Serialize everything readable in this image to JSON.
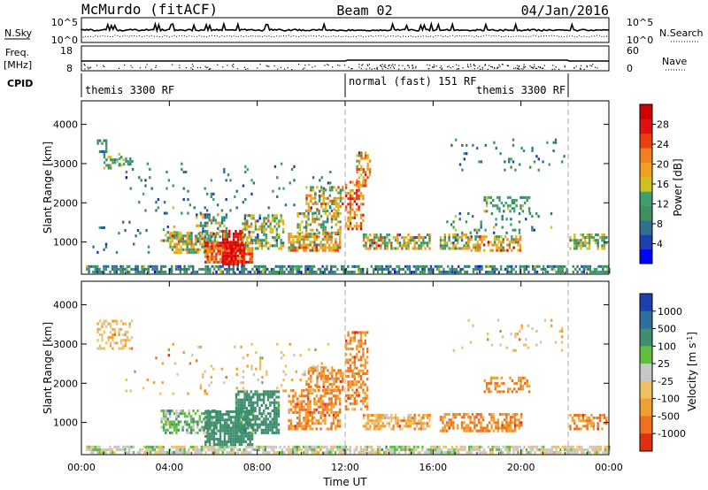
{
  "header": {
    "station": "McMurdo (fitACF)",
    "beam": "Beam 02",
    "date": "04/Jan/2016"
  },
  "labels": {
    "nsky": "N.Sky",
    "nsearch": "N.Search",
    "freq_top": "Freq.",
    "freq_unit": "[MHz]",
    "nave": "Nave",
    "cpid": "CPID",
    "nsky_hi": "10^5",
    "nsky_lo": "10^0",
    "freq_hi": "18",
    "freq_lo": "8",
    "nave_hi": "60",
    "nave_lo": "0"
  },
  "cpid": [
    {
      "text": "themis 3300 RF",
      "start_h": 0,
      "end_h": 12
    },
    {
      "text": "normal (fast) 151 RF",
      "start_h": 12,
      "end_h": 22
    },
    {
      "text": "themis 3300 RF",
      "start_h": 12,
      "end_h": 22
    }
  ],
  "chart_data": [
    {
      "type": "heatmap",
      "name": "power",
      "ylabel": "Slant Range [km]",
      "xlabel": "Time UT",
      "x_ticks": [
        "00:00",
        "04:00",
        "08:00",
        "12:00",
        "16:00",
        "20:00",
        "00:00"
      ],
      "y_ticks": [
        1000,
        2000,
        3000,
        4000
      ],
      "xlim_hours": [
        0,
        24
      ],
      "ylim_km": [
        180,
        4600
      ],
      "colorbar": {
        "label": "Power [dB]",
        "ticks": [
          4,
          8,
          12,
          16,
          20,
          24,
          28
        ],
        "colors": [
          "#0000ff",
          "#1e3fb0",
          "#2f6f8f",
          "#3f8f5f",
          "#3fa06f",
          "#d0c020",
          "#f0a020",
          "#f08020",
          "#e84010",
          "#e01010",
          "#d00000"
        ]
      },
      "regions": [
        {
          "t0": 0.2,
          "t1": 24,
          "r0": 200,
          "r1": 380,
          "dens": 0.65,
          "mean": 9,
          "sd": 4
        },
        {
          "t0": 1.0,
          "t1": 1.9,
          "r0": 2850,
          "r1": 3250,
          "dens": 0.45,
          "mean": 12,
          "sd": 4
        },
        {
          "t0": 0.7,
          "t1": 1.2,
          "r0": 3200,
          "r1": 3550,
          "dens": 0.35,
          "mean": 10,
          "sd": 4
        },
        {
          "t0": 1.6,
          "t1": 2.3,
          "r0": 2950,
          "r1": 3150,
          "dens": 0.4,
          "mean": 12,
          "sd": 4
        },
        {
          "t0": 0.5,
          "t1": 3.2,
          "r0": 700,
          "r1": 1500,
          "dens": 0.08,
          "mean": 8,
          "sd": 4
        },
        {
          "t0": 3.6,
          "t1": 4.4,
          "r0": 1000,
          "r1": 1350,
          "dens": 0.45,
          "mean": 12,
          "sd": 5
        },
        {
          "t0": 4.0,
          "t1": 6.2,
          "r0": 700,
          "r1": 1200,
          "dens": 0.7,
          "mean": 16,
          "sd": 6
        },
        {
          "t0": 5.6,
          "t1": 7.8,
          "r0": 450,
          "r1": 1000,
          "dens": 0.8,
          "mean": 24,
          "sd": 5
        },
        {
          "t0": 6.4,
          "t1": 7.4,
          "r0": 400,
          "r1": 1300,
          "dens": 0.8,
          "mean": 28,
          "sd": 3
        },
        {
          "t0": 7.3,
          "t1": 9.2,
          "r0": 800,
          "r1": 1700,
          "dens": 0.55,
          "mean": 14,
          "sd": 6
        },
        {
          "t0": 5.2,
          "t1": 6.6,
          "r0": 1100,
          "r1": 1700,
          "dens": 0.45,
          "mean": 14,
          "sd": 6
        },
        {
          "t0": 9.4,
          "t1": 11.8,
          "r0": 750,
          "r1": 1200,
          "dens": 0.75,
          "mean": 18,
          "sd": 7
        },
        {
          "t0": 9.8,
          "t1": 11.8,
          "r0": 1200,
          "r1": 1800,
          "dens": 0.5,
          "mean": 15,
          "sd": 6
        },
        {
          "t0": 10.2,
          "t1": 11.9,
          "r0": 1800,
          "r1": 2400,
          "dens": 0.45,
          "mean": 18,
          "sd": 6
        },
        {
          "t0": 12.0,
          "t1": 12.8,
          "r0": 1300,
          "r1": 2500,
          "dens": 0.5,
          "mean": 22,
          "sd": 6
        },
        {
          "t0": 12.5,
          "t1": 13.1,
          "r0": 2400,
          "r1": 3300,
          "dens": 0.55,
          "mean": 20,
          "sd": 6
        },
        {
          "t0": 12.8,
          "t1": 15.8,
          "r0": 800,
          "r1": 1150,
          "dens": 0.65,
          "mean": 16,
          "sd": 7
        },
        {
          "t0": 16.3,
          "t1": 17.6,
          "r0": 800,
          "r1": 1200,
          "dens": 0.6,
          "mean": 15,
          "sd": 6
        },
        {
          "t0": 17.6,
          "t1": 20.0,
          "r0": 750,
          "r1": 1150,
          "dens": 0.55,
          "mean": 18,
          "sd": 7
        },
        {
          "t0": 18.3,
          "t1": 20.4,
          "r0": 1750,
          "r1": 2100,
          "dens": 0.4,
          "mean": 12,
          "sd": 4
        },
        {
          "t0": 16.5,
          "t1": 21.8,
          "r0": 1200,
          "r1": 1700,
          "dens": 0.1,
          "mean": 10,
          "sd": 4
        },
        {
          "t0": 22.2,
          "t1": 23.9,
          "r0": 800,
          "r1": 1200,
          "dens": 0.5,
          "mean": 14,
          "sd": 5
        },
        {
          "t0": 16.8,
          "t1": 22.0,
          "r0": 2800,
          "r1": 3600,
          "dens": 0.06,
          "mean": 9,
          "sd": 3
        },
        {
          "t0": 2.0,
          "t1": 11.5,
          "r0": 1700,
          "r1": 3000,
          "dens": 0.05,
          "mean": 9,
          "sd": 4
        }
      ]
    },
    {
      "type": "heatmap",
      "name": "velocity",
      "ylabel": "Slant Range [km]",
      "xlabel": "Time UT",
      "x_ticks": [
        "00:00",
        "04:00",
        "08:00",
        "12:00",
        "16:00",
        "20:00",
        "00:00"
      ],
      "y_ticks": [
        1000,
        2000,
        3000,
        4000
      ],
      "xlim_hours": [
        0,
        24
      ],
      "ylim_km": [
        180,
        4600
      ],
      "colorbar": {
        "label": "Velocity [m s^-1]",
        "ticks": [
          "1000",
          "500",
          "100",
          "25",
          "-25",
          "-100",
          "-500",
          "-1000"
        ],
        "colors": [
          "#1e3fb0",
          "#2f6f9f",
          "#3f8f6f",
          "#5fbf3f",
          "#c8c8c8",
          "#f0c060",
          "#f0a030",
          "#f07020",
          "#e03010"
        ]
      },
      "regions": [
        {
          "t0": 0.2,
          "t1": 24,
          "r0": 200,
          "r1": 380,
          "dens": 0.7,
          "mean": 4,
          "sd": 1
        },
        {
          "t0": 0.7,
          "t1": 2.3,
          "r0": 2850,
          "r1": 3550,
          "dens": 0.35,
          "mean": 5,
          "sd": 1
        },
        {
          "t0": 3.6,
          "t1": 6.2,
          "r0": 700,
          "r1": 1300,
          "dens": 0.55,
          "mean": 3,
          "sd": 1
        },
        {
          "t0": 5.6,
          "t1": 7.8,
          "r0": 400,
          "r1": 1300,
          "dens": 0.8,
          "mean": 2,
          "sd": 0.3
        },
        {
          "t0": 7.0,
          "t1": 9.0,
          "r0": 700,
          "r1": 1800,
          "dens": 0.7,
          "mean": 2,
          "sd": 0.4
        },
        {
          "t0": 9.4,
          "t1": 11.8,
          "r0": 800,
          "r1": 1800,
          "dens": 0.6,
          "mean": 6.5,
          "sd": 0.8
        },
        {
          "t0": 10.2,
          "t1": 11.9,
          "r0": 1800,
          "r1": 2400,
          "dens": 0.5,
          "mean": 6.5,
          "sd": 0.7
        },
        {
          "t0": 12.0,
          "t1": 13.0,
          "r0": 1300,
          "r1": 3300,
          "dens": 0.5,
          "mean": 6.5,
          "sd": 0.8
        },
        {
          "t0": 12.8,
          "t1": 15.8,
          "r0": 800,
          "r1": 1150,
          "dens": 0.6,
          "mean": 5.5,
          "sd": 1.5
        },
        {
          "t0": 16.3,
          "t1": 20.0,
          "r0": 750,
          "r1": 1200,
          "dens": 0.55,
          "mean": 6.5,
          "sd": 0.8
        },
        {
          "t0": 18.3,
          "t1": 20.4,
          "r0": 1750,
          "r1": 2100,
          "dens": 0.4,
          "mean": 6.5,
          "sd": 0.6
        },
        {
          "t0": 22.2,
          "t1": 23.9,
          "r0": 800,
          "r1": 1200,
          "dens": 0.5,
          "mean": 6.5,
          "sd": 0.7
        },
        {
          "t0": 16.8,
          "t1": 22.0,
          "r0": 2800,
          "r1": 3600,
          "dens": 0.06,
          "mean": 5,
          "sd": 1.2
        },
        {
          "t0": 2.0,
          "t1": 11.5,
          "r0": 1700,
          "r1": 3000,
          "dens": 0.05,
          "mean": 5,
          "sd": 1.5
        }
      ]
    }
  ]
}
